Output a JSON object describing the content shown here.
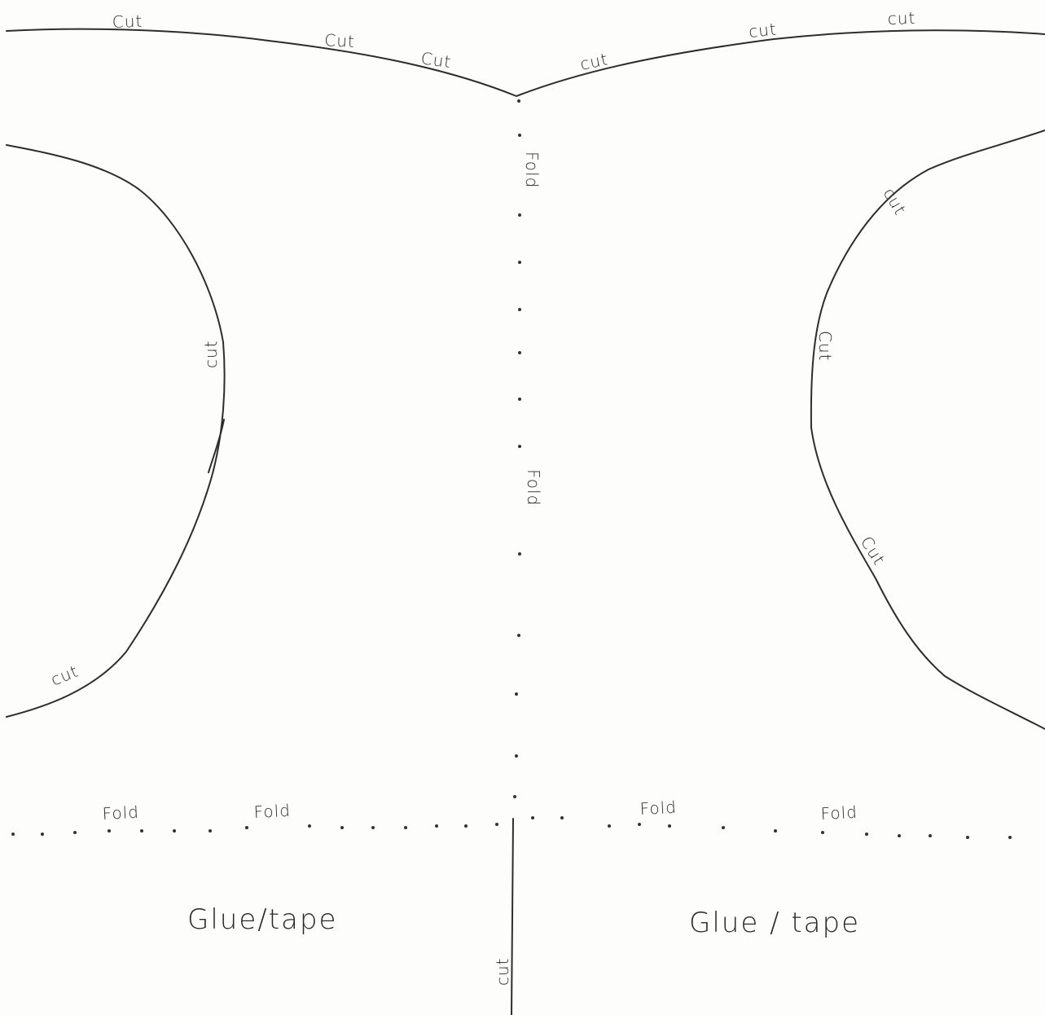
{
  "labels": {
    "cut": "Cut",
    "cut_lower": "cut",
    "fold": "Fold",
    "glue_tape": "Glue/tape",
    "glue_tape_spaced": "Glue / tape"
  },
  "colors": {
    "paper": "#fdfdfc",
    "ink": "#2d2d2d"
  }
}
